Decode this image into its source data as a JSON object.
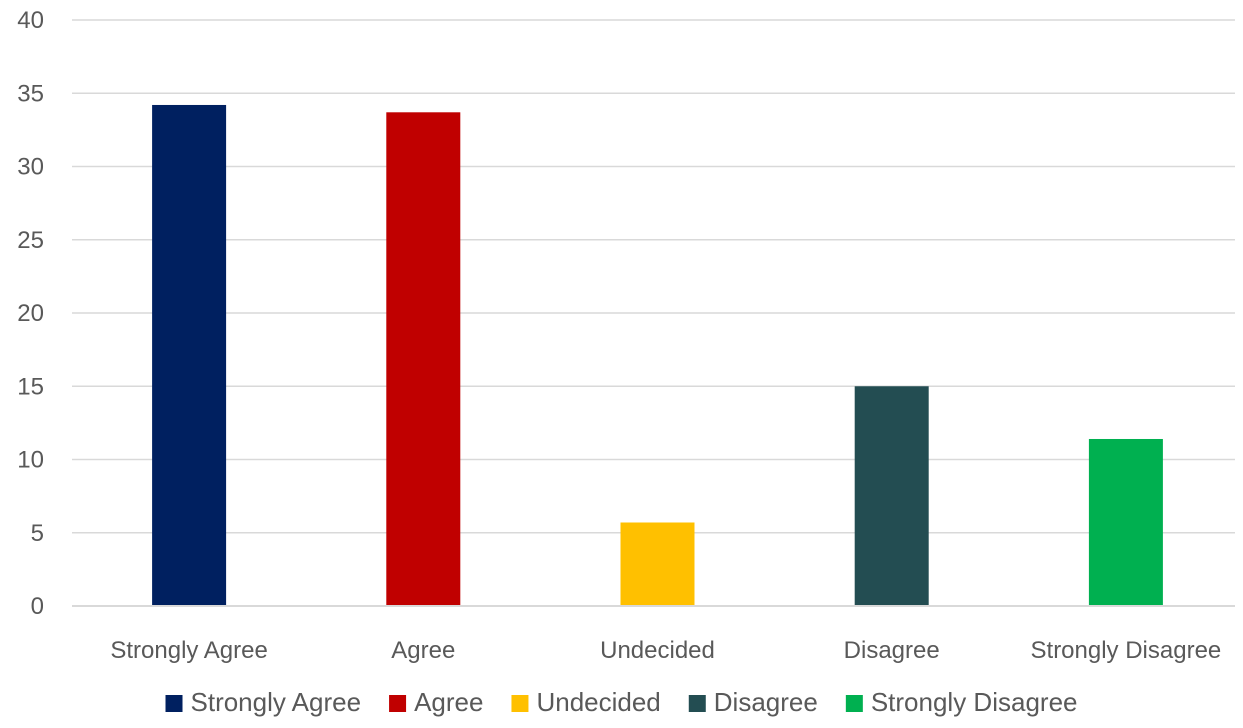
{
  "chart_data": {
    "type": "bar",
    "title": "",
    "xlabel": "",
    "ylabel": "",
    "categories": [
      "Strongly Agree",
      "Agree",
      "Undecided",
      "Disagree",
      "Strongly Disagree"
    ],
    "values": [
      34.2,
      33.7,
      5.7,
      15.0,
      11.4
    ],
    "colors": [
      "#002060",
      "#c00000",
      "#ffc000",
      "#234d52",
      "#00b050"
    ],
    "ylim": [
      0,
      40
    ],
    "yticks": [
      0,
      5,
      10,
      15,
      20,
      25,
      30,
      35,
      40
    ],
    "grid": true,
    "legend": {
      "position": "bottom",
      "entries": [
        "Strongly Agree",
        "Agree",
        "Undecided",
        "Disagree",
        "Strongly Disagree"
      ]
    }
  }
}
